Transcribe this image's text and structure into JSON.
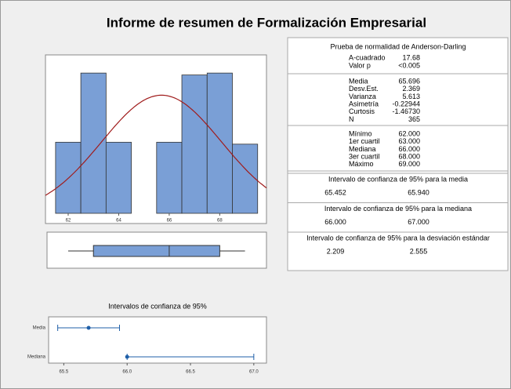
{
  "title": "Informe de resumen de Formalización Empresarial",
  "stats": {
    "normality": {
      "title": "Prueba de normalidad de Anderson-Darling",
      "rows": [
        [
          "A-cuadrado",
          "17.68"
        ],
        [
          "Valor p",
          "<0.005"
        ]
      ]
    },
    "moments": {
      "rows": [
        [
          "Media",
          "65.696"
        ],
        [
          "Desv.Est.",
          "2.369"
        ],
        [
          "Varianza",
          "5.613"
        ],
        [
          "Asimetría",
          "-0.22944"
        ],
        [
          "Curtosis",
          "-1.46730"
        ],
        [
          "N",
          "365"
        ]
      ]
    },
    "quantiles": {
      "rows": [
        [
          "Mínimo",
          "62.000"
        ],
        [
          "1er cuartil",
          "63.000"
        ],
        [
          "Mediana",
          "66.000"
        ],
        [
          "3er cuartil",
          "68.000"
        ],
        [
          "Máximo",
          "69.000"
        ]
      ]
    },
    "intervals": [
      {
        "title": "Intervalo de confianza de 95% para la media",
        "lower": "65.452",
        "upper": "65.940"
      },
      {
        "title": "Intervalo de confianza de 95% para la mediana",
        "lower": "66.000",
        "upper": "67.000"
      },
      {
        "title": "Intervalo de confianza de 95% para la desviación estándar",
        "lower": "2.209",
        "upper": "2.555"
      }
    ]
  },
  "chart_data": [
    {
      "type": "histogram",
      "bins": [
        61.5,
        62.5,
        63.5,
        64.5,
        65.5,
        66.5,
        67.5,
        68.5,
        69.5
      ],
      "counts": [
        37,
        73,
        37,
        0,
        37,
        72,
        73,
        36
      ],
      "color": "#7a9fd6",
      "curve_color": "#a01c1c",
      "xlim": [
        61.1,
        69.85
      ],
      "xticks": [
        62,
        64,
        66,
        68
      ],
      "ylim": [
        0,
        80
      ]
    },
    {
      "type": "boxplot",
      "color": "#7a9fd6",
      "xlim": [
        61.1,
        69.85
      ]
    },
    {
      "type": "interval",
      "title": "Intervalos de confianza de 95%",
      "categories": [
        "Media",
        "Mediana"
      ],
      "xlim": [
        65.38,
        67.1
      ],
      "xticks": [
        65.5,
        {
          "value": 66,
          "label": "66.0"
        },
        66.5,
        {
          "value": 67,
          "label": "67.0"
        }
      ],
      "color": "#1f5fa8"
    }
  ]
}
